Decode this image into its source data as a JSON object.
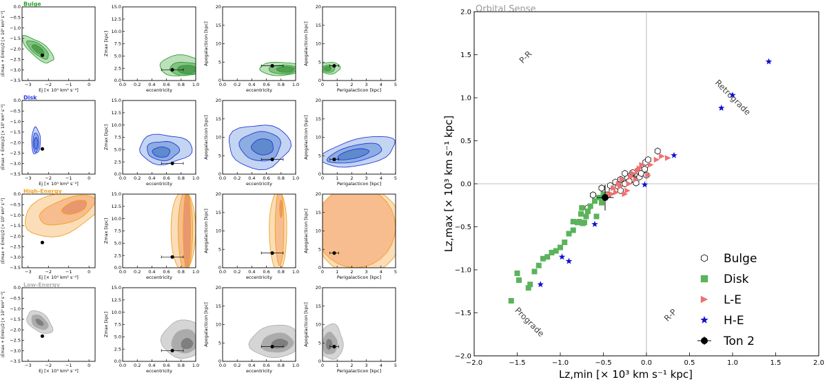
{
  "chart_data": [
    {
      "type": "panel-grid",
      "rows": [
        {
          "name": "Bulge",
          "color": "#2ca02c",
          "fill": [
            "#e3f2e3",
            "#b5dcb5",
            "#7dbd7d",
            "#4e9a4e"
          ]
        },
        {
          "name": "Disk",
          "color": "#2437e0",
          "fill": [
            "#e6edf9",
            "#bcd0ee",
            "#86a9df",
            "#5a86c9"
          ]
        },
        {
          "name": "High-Energy",
          "color": "#f0a020",
          "fill": [
            "#fdf0e0",
            "#fbd9b0",
            "#f6b98a",
            "#e6946b"
          ]
        },
        {
          "name": "Low-Energy",
          "color": "#b0b0b0",
          "fill": [
            "#f2f2f2",
            "#d0d0d0",
            "#a6a6a6",
            "#7a7a7a"
          ]
        }
      ],
      "columns": [
        {
          "xlabel": "E$_J$",
          "xlabel_text": "Ej [× 10⁵ km² s⁻²]",
          "ylabel_text": "(Emax + Emin)/2 [× 10⁵ km² s⁻²]",
          "xlim": [
            -3.3,
            0.3
          ],
          "ylim": [
            -3.5,
            0.0
          ],
          "xticks": [
            -3,
            -2,
            -1,
            0
          ],
          "yticks": [
            0.0,
            -0.5,
            -1.0,
            -1.5,
            -2.0,
            -2.5,
            -3.0,
            -3.5
          ],
          "ytick_labels": [
            "0.0",
            "−0.5",
            "−1.0",
            "−1.5",
            "−2.0",
            "−2.5",
            "−3.0",
            "−3.5"
          ]
        },
        {
          "xlabel_text": "eccentricity",
          "ylabel_text": "Zmax [kpc]",
          "xlim": [
            0.0,
            1.0
          ],
          "ylim": [
            0.0,
            15.0
          ],
          "xticks": [
            0.0,
            0.2,
            0.4,
            0.6,
            0.8,
            1.0
          ],
          "yticks": [
            0.0,
            2.5,
            5.0,
            7.5,
            10.0,
            12.5,
            15.0
          ],
          "ytick_labels": [
            "0.0",
            "2.5",
            "5.0",
            "7.5",
            "10.0",
            "12.5",
            "15.0"
          ]
        },
        {
          "xlabel_text": "eccentricity",
          "ylabel_text": "Apogalacticon [kpc]",
          "xlim": [
            0.0,
            1.0
          ],
          "ylim": [
            0,
            20
          ],
          "xticks": [
            0.0,
            0.2,
            0.4,
            0.6,
            0.8,
            1.0
          ],
          "yticks": [
            0,
            5,
            10,
            15,
            20
          ],
          "ytick_labels": [
            "0",
            "5",
            "10",
            "15",
            "20"
          ]
        },
        {
          "xlabel_text": "Perigalacticon [kpc]",
          "ylabel_text": "Apogalacticon [kpc]",
          "xlim": [
            0,
            5
          ],
          "ylim": [
            0,
            20
          ],
          "xticks": [
            0,
            1,
            2,
            3,
            4,
            5
          ],
          "yticks": [
            0,
            5,
            10,
            15,
            20
          ],
          "ytick_labels": [
            "0",
            "5",
            "10",
            "15",
            "20"
          ]
        }
      ],
      "ton2_point": {
        "Ej": -2.3,
        "Emean": -2.3,
        "ecc": 0.68,
        "ecc_err": 0.15,
        "zmax": 2.2,
        "zmax_err": 0.3,
        "apo": 4.0,
        "apo_err": 0.3,
        "peri": 0.8,
        "peri_err": 0.3
      }
    },
    {
      "type": "scatter",
      "title": "Orbital Sense",
      "xlabel": "Lz,min [× 10³ km s⁻¹ kpc]",
      "ylabel": "Lz,max [× 10³ km s⁻¹ kpc]",
      "xlim": [
        -2.0,
        2.0
      ],
      "ylim": [
        -2.0,
        2.0
      ],
      "xticks": [
        -2.0,
        -1.5,
        -1.0,
        -0.5,
        0.0,
        0.5,
        1.0,
        1.5,
        2.0
      ],
      "yticks": [
        -2.0,
        -1.5,
        -1.0,
        -0.5,
        0.0,
        0.5,
        1.0,
        1.5,
        2.0
      ],
      "xtick_labels": [
        "−2.0",
        "−1.5",
        "−1.0",
        "−0.5",
        "0.0",
        "0.5",
        "1.0",
        "1.5",
        "2.0"
      ],
      "ytick_labels": [
        "−2.0",
        "−1.5",
        "−1.0",
        "−0.5",
        "0.0",
        "0.5",
        "1.0",
        "1.5",
        "2.0"
      ],
      "region_labels": [
        {
          "text": "P-R",
          "x": -1.38,
          "y": 1.45,
          "rotation": 45
        },
        {
          "text": "Retrograde",
          "x": 0.98,
          "y": 0.98,
          "rotation": -45
        },
        {
          "text": "Prograde",
          "x": -1.38,
          "y": -1.63,
          "rotation": -45
        },
        {
          "text": "R-P",
          "x": 0.3,
          "y": -1.55,
          "rotation": 45
        }
      ],
      "series": [
        {
          "name": "Bulge",
          "marker": "hexagon",
          "color": "#000000",
          "fill": "none",
          "points": [
            [
              -0.62,
              -0.13
            ],
            [
              -0.52,
              -0.05
            ],
            [
              -0.42,
              -0.02
            ],
            [
              -0.36,
              0.02
            ],
            [
              -0.3,
              0.05
            ],
            [
              -0.25,
              0.0
            ],
            [
              -0.22,
              0.07
            ],
            [
              -0.18,
              0.1
            ],
            [
              -0.15,
              0.05
            ],
            [
              -0.12,
              0.12
            ],
            [
              -0.1,
              0.15
            ],
            [
              -0.08,
              0.08
            ],
            [
              -0.05,
              0.18
            ],
            [
              -0.03,
              0.2
            ],
            [
              0.0,
              0.22
            ],
            [
              -0.01,
              0.25
            ],
            [
              0.02,
              0.28
            ],
            [
              -0.4,
              -0.08
            ],
            [
              -0.33,
              -0.03
            ],
            [
              -0.2,
              0.03
            ],
            [
              -0.16,
              0.13
            ],
            [
              -0.06,
              0.12
            ],
            [
              -0.02,
              0.17
            ],
            [
              -0.25,
              0.12
            ],
            [
              0.13,
              0.38
            ],
            [
              -0.45,
              -0.13
            ],
            [
              0.0,
              0.1
            ],
            [
              -0.68,
              -0.28
            ],
            [
              -0.3,
              -0.08
            ],
            [
              -0.12,
              0.01
            ]
          ]
        },
        {
          "name": "Disk",
          "marker": "square",
          "color": "#5bb35b",
          "points": [
            [
              -1.57,
              -1.36
            ],
            [
              -1.5,
              -1.04
            ],
            [
              -1.48,
              -1.12
            ],
            [
              -1.37,
              -1.21
            ],
            [
              -1.35,
              -1.17
            ],
            [
              -1.3,
              -1.02
            ],
            [
              -1.25,
              -0.95
            ],
            [
              -1.2,
              -0.87
            ],
            [
              -1.15,
              -0.85
            ],
            [
              -1.1,
              -0.8
            ],
            [
              -1.05,
              -0.78
            ],
            [
              -1.0,
              -0.74
            ],
            [
              -0.95,
              -0.68
            ],
            [
              -0.9,
              -0.58
            ],
            [
              -0.85,
              -0.54
            ],
            [
              -0.8,
              -0.45
            ],
            [
              -0.78,
              -0.44
            ],
            [
              -0.76,
              -0.35
            ],
            [
              -0.74,
              -0.46
            ],
            [
              -0.7,
              -0.38
            ],
            [
              -0.68,
              -0.32
            ],
            [
              -0.65,
              -0.26
            ],
            [
              -0.6,
              -0.2
            ],
            [
              -0.58,
              -0.38
            ],
            [
              -0.55,
              -0.16
            ],
            [
              -0.52,
              -0.22
            ],
            [
              -0.5,
              -0.12
            ],
            [
              -0.85,
              -0.44
            ],
            [
              -0.75,
              -0.28
            ],
            [
              -0.72,
              -0.45
            ]
          ]
        },
        {
          "name": "L-E",
          "marker": "triangle-right",
          "color": "#f07070",
          "points": [
            [
              -0.43,
              -0.12
            ],
            [
              -0.38,
              -0.05
            ],
            [
              -0.35,
              -0.1
            ],
            [
              -0.3,
              -0.03
            ],
            [
              -0.28,
              0.05
            ],
            [
              -0.25,
              -0.12
            ],
            [
              -0.2,
              0.0
            ],
            [
              -0.18,
              0.08
            ],
            [
              -0.15,
              0.12
            ],
            [
              -0.12,
              0.05
            ],
            [
              -0.1,
              0.15
            ],
            [
              -0.08,
              0.18
            ],
            [
              -0.05,
              0.22
            ],
            [
              -0.32,
              0.0
            ],
            [
              -0.22,
              -0.08
            ],
            [
              0.02,
              0.1
            ],
            [
              0.05,
              0.22
            ],
            [
              0.12,
              0.28
            ],
            [
              0.18,
              0.32
            ],
            [
              0.25,
              0.3
            ],
            [
              -0.4,
              -0.12
            ]
          ]
        },
        {
          "name": "H-E",
          "marker": "star",
          "color": "#1010d0",
          "points": [
            [
              1.42,
              1.42
            ],
            [
              1.0,
              1.03
            ],
            [
              0.87,
              0.88
            ],
            [
              0.32,
              0.33
            ],
            [
              -0.02,
              -0.01
            ],
            [
              -0.6,
              -0.47
            ],
            [
              -0.9,
              -0.9
            ],
            [
              -0.98,
              -0.85
            ],
            [
              -1.23,
              -1.17
            ]
          ]
        }
      ],
      "ton2": {
        "x": -0.48,
        "y": -0.16,
        "xerr": 0.1,
        "yerr": 0.15
      },
      "legend": [
        {
          "label": "Bulge",
          "marker": "hexagon"
        },
        {
          "label": "Disk",
          "marker": "square"
        },
        {
          "label": "L-E",
          "marker": "triangle-right"
        },
        {
          "label": "H-E",
          "marker": "star"
        },
        {
          "label": "Ton 2",
          "marker": "errorbar-circle"
        }
      ],
      "legend_position": "lower-right"
    }
  ]
}
